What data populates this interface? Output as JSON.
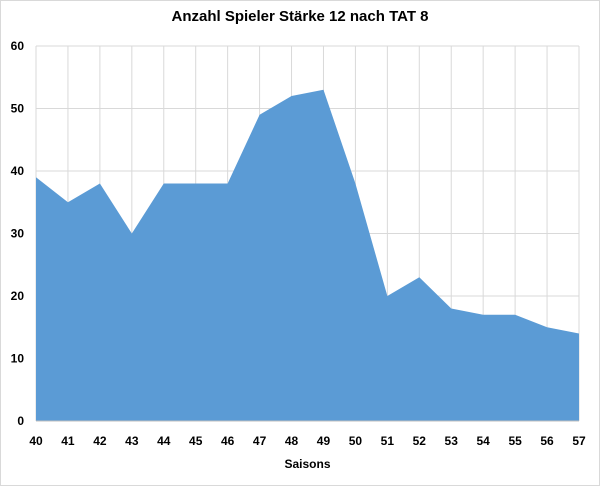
{
  "chart_data": {
    "type": "area",
    "title": "Anzahl Spieler Stärke 12 nach TAT 8",
    "xlabel": "Saisons",
    "ylabel": "",
    "x": [
      40,
      41,
      42,
      43,
      44,
      45,
      46,
      47,
      48,
      49,
      50,
      51,
      52,
      53,
      54,
      55,
      56,
      57
    ],
    "values": [
      39,
      35,
      38,
      30,
      38,
      38,
      38,
      49,
      52,
      53,
      38,
      20,
      23,
      18,
      17,
      17,
      15,
      14
    ],
    "ylim": [
      0,
      60
    ],
    "yticks": [
      0,
      10,
      20,
      30,
      40,
      50,
      60
    ],
    "grid": true,
    "fill_color": "#5b9bd5",
    "grid_color": "#d9d9d9"
  }
}
